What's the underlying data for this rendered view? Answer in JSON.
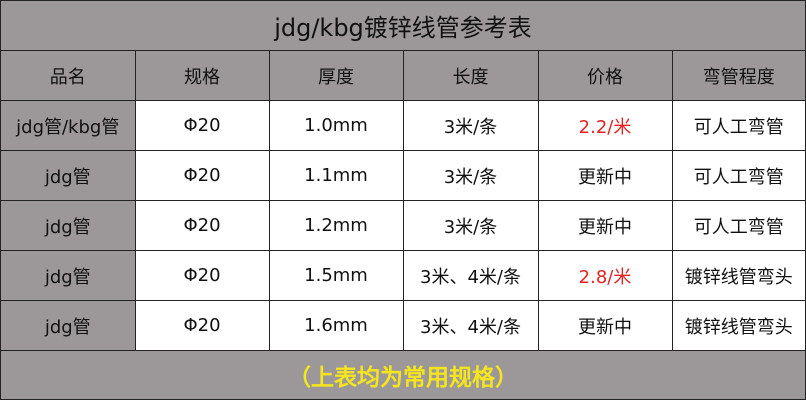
{
  "title": "jdg/kbg镀锌线管参考表",
  "headers": [
    "品名",
    "规格",
    "厚度",
    "长度",
    "价格",
    "弯管程度"
  ],
  "rows": [
    [
      "jdg管/kbg管",
      "Φ20",
      "1.0mm",
      "3米/条",
      "2.2/米",
      "可人工弯管"
    ],
    [
      "jdg管",
      "Φ20",
      "1.1mm",
      "3米/条",
      "更新中",
      "可人工弯管"
    ],
    [
      "jdg管",
      "Φ20",
      "1.2mm",
      "3米/条",
      "更新中",
      "可人工弯管"
    ],
    [
      "jdg管",
      "Φ20",
      "1.5mm",
      "3米、4米/条",
      "2.8/米",
      "镀锌线管弯头"
    ],
    [
      "jdg管",
      "Φ20",
      "1.6mm",
      "3米、4米/条",
      "更新中",
      "镀锌线管弯头"
    ]
  ],
  "price_highlight_color": "#e32222",
  "footer": "（上表均为常用规格）"
}
